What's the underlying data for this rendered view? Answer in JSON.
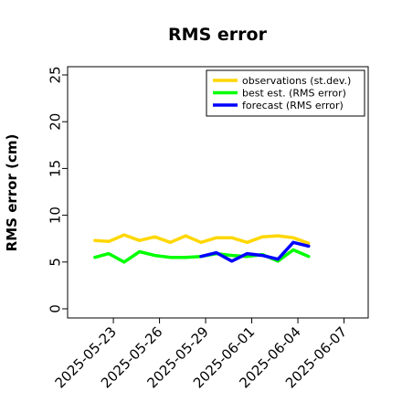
{
  "chart_data": {
    "type": "line",
    "title": "RMS error",
    "ylabel": "RMS error (cm)",
    "xlabel": "",
    "ylim": [
      0,
      25
    ],
    "yticks": [
      0,
      5,
      10,
      15,
      20,
      25
    ],
    "grid": false,
    "legend_position": "top-right",
    "x_tick_labels": [
      {
        "label": "2025-05-23",
        "day": 23,
        "color": "#000000"
      },
      {
        "label": "2025-05-26",
        "day": 26,
        "color": "#000000"
      },
      {
        "label": "2025-05-29",
        "day": 29,
        "color": "#228B22"
      },
      {
        "label": "2025-06-01",
        "day": 32,
        "color": "#000000"
      },
      {
        "label": "2025-06-04",
        "day": 35,
        "color": "#000000"
      },
      {
        "label": "2025-06-07",
        "day": 38,
        "color": "#000000"
      }
    ],
    "xlim_days": [
      19.9,
      39.7
    ],
    "series": [
      {
        "name": "observations (st.dev.)",
        "color": "#FFD700",
        "x_days": [
          21.8,
          22.7,
          23.7,
          24.7,
          25.7,
          26.7,
          27.7,
          28.7,
          29.7,
          30.7,
          31.7,
          32.7,
          33.7,
          34.7,
          35.7
        ],
        "values": [
          7.3,
          7.2,
          7.9,
          7.3,
          7.7,
          7.1,
          7.8,
          7.1,
          7.6,
          7.6,
          7.1,
          7.7,
          7.8,
          7.6,
          7.0
        ]
      },
      {
        "name": "best est. (RMS error)",
        "color": "#00FF00",
        "x_days": [
          21.8,
          22.7,
          23.7,
          24.7,
          25.7,
          26.7,
          27.7,
          28.7,
          29.7,
          30.7,
          31.7,
          32.7,
          33.7,
          34.7,
          35.7
        ],
        "values": [
          5.5,
          5.9,
          5.0,
          6.1,
          5.7,
          5.5,
          5.5,
          5.6,
          5.9,
          5.7,
          5.6,
          5.8,
          5.1,
          6.3,
          5.6
        ]
      },
      {
        "name": "forecast (RMS error)",
        "color": "#0000FF",
        "x_days": [
          28.7,
          29.7,
          30.7,
          31.7,
          32.7,
          33.7,
          34.7,
          35.7
        ],
        "values": [
          5.6,
          6.0,
          5.1,
          5.9,
          5.7,
          5.3,
          7.1,
          6.7
        ]
      }
    ]
  }
}
